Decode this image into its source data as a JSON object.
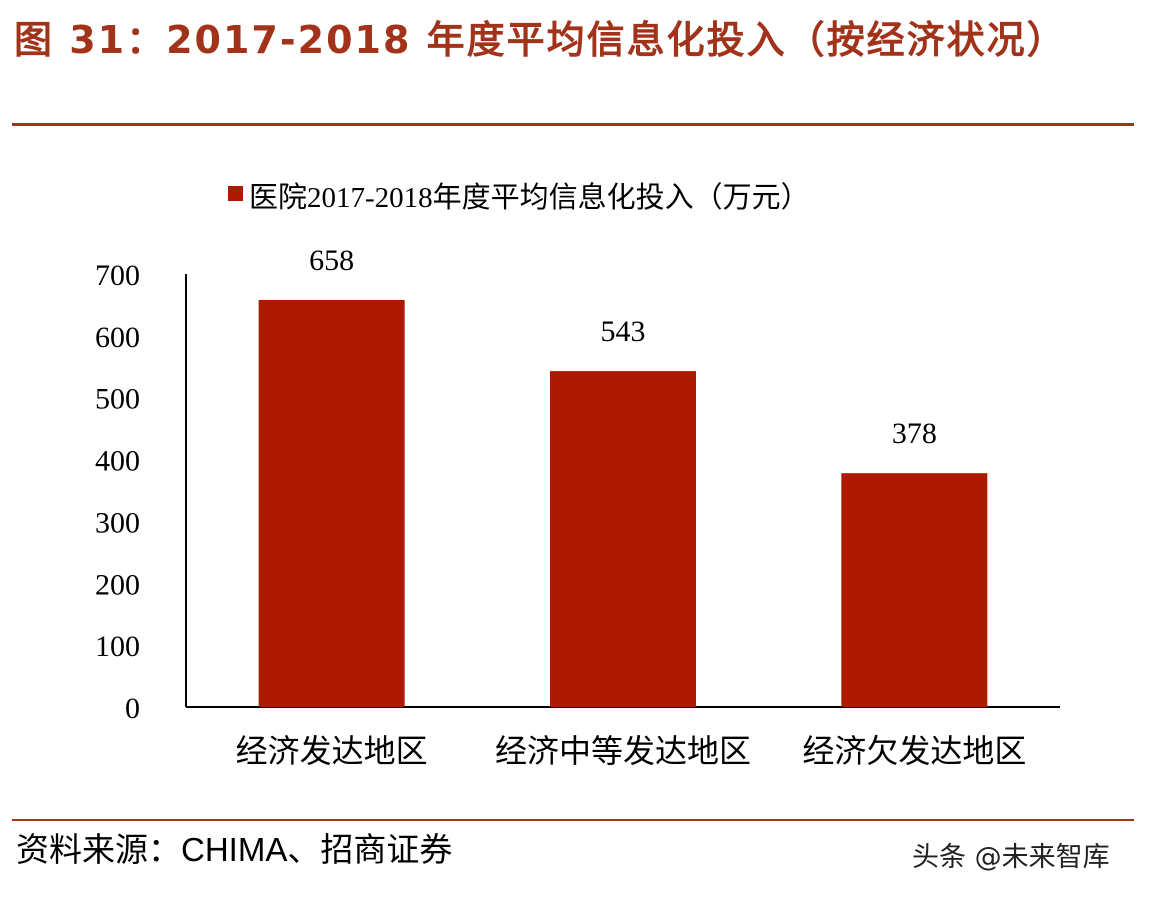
{
  "figure": {
    "title": "图 31：2017-2018 年度平均信息化投入（按经济状况）",
    "source": "资料来源：CHIMA、招商证券",
    "watermark": "头条 @未来智库"
  },
  "colors": {
    "accent": "#a0331a",
    "bar": "#ac1b00",
    "axis": "#000000"
  },
  "chart_data": {
    "type": "bar",
    "title": "",
    "xlabel": "",
    "ylabel": "",
    "categories": [
      "经济发达地区",
      "经济中等发达地区",
      "经济欠发达地区"
    ],
    "series": [
      {
        "name": "医院2017-2018年度平均信息化投入（万元）",
        "values": [
          658,
          543,
          378
        ]
      }
    ],
    "data_labels": [
      "658",
      "543",
      "378"
    ],
    "yticks": [
      "0",
      "100",
      "200",
      "300",
      "400",
      "500",
      "600",
      "700"
    ],
    "ylim": [
      0,
      700
    ],
    "grid": false,
    "legend_position": "top"
  }
}
